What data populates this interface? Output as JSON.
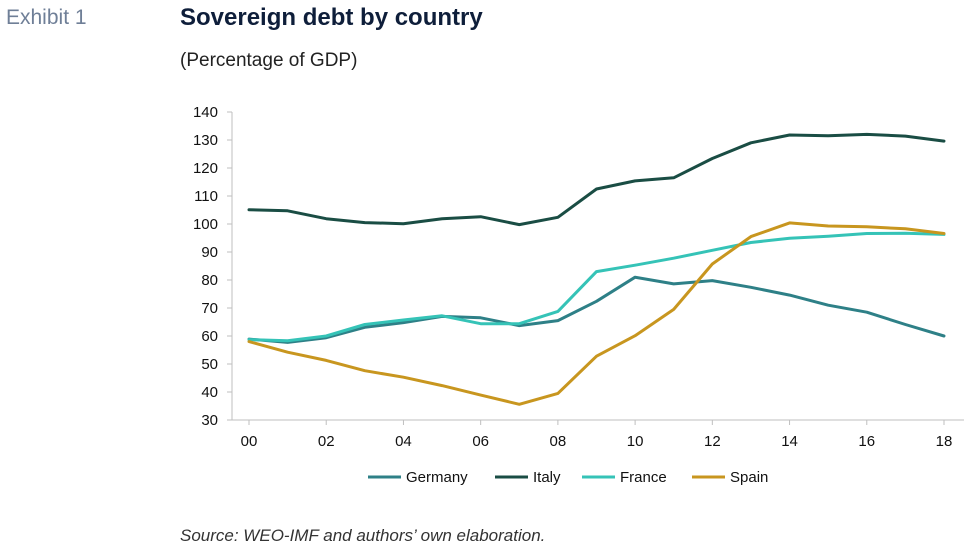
{
  "exhibit_label": "Exhibit 1",
  "source": "Source: WEO-IMF and authors’ own elaboration.",
  "chart_data": {
    "type": "line",
    "title": "Sovereign debt by country",
    "subtitle": "(Percentage of GDP)",
    "xlabel": "",
    "ylabel": "",
    "x": [
      2000,
      2001,
      2002,
      2003,
      2004,
      2005,
      2006,
      2007,
      2008,
      2009,
      2010,
      2011,
      2012,
      2013,
      2014,
      2015,
      2016,
      2017,
      2018
    ],
    "xticks": [
      "00",
      "02",
      "04",
      "06",
      "08",
      "10",
      "12",
      "14",
      "16",
      "18"
    ],
    "ylim": [
      30,
      140
    ],
    "yticks": [
      "30",
      "40",
      "50",
      "60",
      "70",
      "80",
      "90",
      "100",
      "110",
      "120",
      "130",
      "140"
    ],
    "grid": false,
    "legend_position": "bottom",
    "series": [
      {
        "name": "Germany",
        "color": "#2e8087",
        "values": [
          58.9,
          57.7,
          59.4,
          63.1,
          64.8,
          67.0,
          66.5,
          63.7,
          65.5,
          72.4,
          81.0,
          78.6,
          79.8,
          77.4,
          74.6,
          71.0,
          68.5,
          64.1,
          60.0
        ]
      },
      {
        "name": "Italy",
        "color": "#1a4d44",
        "values": [
          105.1,
          104.7,
          101.9,
          100.5,
          100.1,
          101.9,
          102.6,
          99.8,
          102.4,
          112.5,
          115.4,
          116.5,
          123.4,
          129.0,
          131.8,
          131.5,
          132.0,
          131.4,
          129.6
        ]
      },
      {
        "name": "France",
        "color": "#35c3b7",
        "values": [
          58.7,
          58.3,
          60.0,
          64.1,
          65.7,
          67.2,
          64.4,
          64.4,
          68.8,
          83.0,
          85.3,
          87.8,
          90.6,
          93.4,
          94.9,
          95.6,
          96.6,
          96.7,
          96.3
        ]
      },
      {
        "name": "Spain",
        "color": "#c8961f",
        "values": [
          58.0,
          54.2,
          51.3,
          47.6,
          45.3,
          42.3,
          38.9,
          35.6,
          39.5,
          52.8,
          60.1,
          69.5,
          85.7,
          95.5,
          100.4,
          99.3,
          99.0,
          98.3,
          96.6
        ]
      }
    ]
  }
}
